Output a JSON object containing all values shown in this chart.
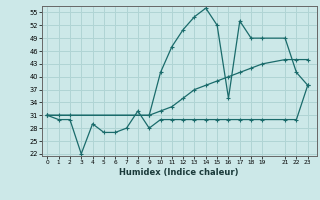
{
  "title": "",
  "xlabel": "Humidex (Indice chaleur)",
  "bg_color": "#cce8e8",
  "line_color": "#1a6b6b",
  "grid_color": "#b0d4d4",
  "ylim": [
    21.5,
    56.5
  ],
  "yticks": [
    22,
    25,
    28,
    31,
    34,
    37,
    40,
    43,
    46,
    49,
    52,
    55
  ],
  "xticks": [
    0,
    1,
    2,
    3,
    4,
    5,
    6,
    7,
    8,
    9,
    10,
    11,
    12,
    13,
    14,
    15,
    16,
    17,
    18,
    19,
    21,
    22,
    23
  ],
  "xlim": [
    -0.5,
    23.8
  ],
  "line1_x": [
    0,
    1,
    2,
    3,
    4,
    5,
    6,
    7,
    8,
    9,
    10,
    11,
    12,
    13,
    14,
    15,
    16,
    17,
    18,
    19,
    21,
    22,
    23
  ],
  "line1_y": [
    31,
    30,
    30,
    22,
    29,
    27,
    27,
    28,
    32,
    28,
    30,
    30,
    30,
    30,
    30,
    30,
    30,
    30,
    30,
    30,
    30,
    30,
    38
  ],
  "line2_x": [
    0,
    1,
    2,
    9,
    10,
    11,
    12,
    13,
    14,
    15,
    16,
    17,
    18,
    19,
    21,
    22,
    23
  ],
  "line2_y": [
    31,
    31,
    31,
    31,
    32,
    33,
    35,
    37,
    38,
    39,
    40,
    41,
    42,
    43,
    44,
    44,
    44
  ],
  "line3_x": [
    0,
    9,
    10,
    11,
    12,
    13,
    14,
    15,
    16,
    17,
    18,
    19,
    21,
    22,
    23
  ],
  "line3_y": [
    31,
    31,
    41,
    47,
    51,
    54,
    56,
    52,
    35,
    53,
    49,
    49,
    49,
    41,
    38
  ]
}
